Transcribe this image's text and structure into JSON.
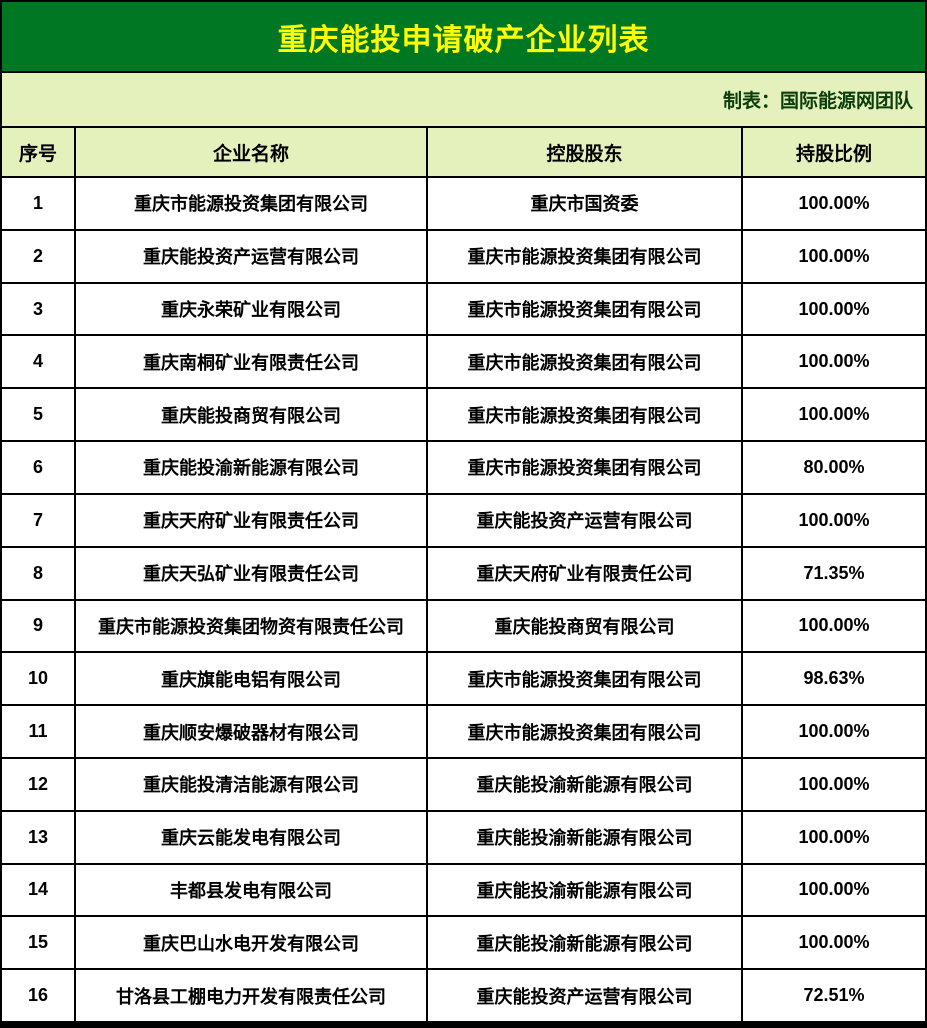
{
  "title": {
    "text": "重庆能投申请破产企业列表"
  },
  "subtitle": {
    "text": "制表：国际能源网团队"
  },
  "table": {
    "headers": [
      "序号",
      "企业名称",
      "控股股东",
      "持股比例"
    ],
    "rows": [
      {
        "seq": "1",
        "company": "重庆市能源投资集团有限公司",
        "shareholder": "重庆市国资委",
        "ratio": "100.00%"
      },
      {
        "seq": "2",
        "company": "重庆能投资产运营有限公司",
        "shareholder": "重庆市能源投资集团有限公司",
        "ratio": "100.00%"
      },
      {
        "seq": "3",
        "company": "重庆永荣矿业有限公司",
        "shareholder": "重庆市能源投资集团有限公司",
        "ratio": "100.00%"
      },
      {
        "seq": "4",
        "company": "重庆南桐矿业有限责任公司",
        "shareholder": "重庆市能源投资集团有限公司",
        "ratio": "100.00%"
      },
      {
        "seq": "5",
        "company": "重庆能投商贸有限公司",
        "shareholder": "重庆市能源投资集团有限公司",
        "ratio": "100.00%"
      },
      {
        "seq": "6",
        "company": "重庆能投渝新能源有限公司",
        "shareholder": "重庆市能源投资集团有限公司",
        "ratio": "80.00%"
      },
      {
        "seq": "7",
        "company": "重庆天府矿业有限责任公司",
        "shareholder": "重庆能投资产运营有限公司",
        "ratio": "100.00%"
      },
      {
        "seq": "8",
        "company": "重庆天弘矿业有限责任公司",
        "shareholder": "重庆天府矿业有限责任公司",
        "ratio": "71.35%"
      },
      {
        "seq": "9",
        "company": "重庆市能源投资集团物资有限责任公司",
        "shareholder": "重庆能投商贸有限公司",
        "ratio": "100.00%"
      },
      {
        "seq": "10",
        "company": "重庆旗能电铝有限公司",
        "shareholder": "重庆市能源投资集团有限公司",
        "ratio": "98.63%"
      },
      {
        "seq": "11",
        "company": "重庆顺安爆破器材有限公司",
        "shareholder": "重庆市能源投资集团有限公司",
        "ratio": "100.00%"
      },
      {
        "seq": "12",
        "company": "重庆能投清洁能源有限公司",
        "shareholder": "重庆能投渝新能源有限公司",
        "ratio": "100.00%"
      },
      {
        "seq": "13",
        "company": "重庆云能发电有限公司",
        "shareholder": "重庆能投渝新能源有限公司",
        "ratio": "100.00%"
      },
      {
        "seq": "14",
        "company": "丰都县发电有限公司",
        "shareholder": "重庆能投渝新能源有限公司",
        "ratio": "100.00%"
      },
      {
        "seq": "15",
        "company": "重庆巴山水电开发有限公司",
        "shareholder": "重庆能投渝新能源有限公司",
        "ratio": "100.00%"
      },
      {
        "seq": "16",
        "company": "甘洛县工棚电力开发有限责任公司",
        "shareholder": "重庆能投资产运营有限公司",
        "ratio": "72.51%"
      }
    ]
  },
  "colors": {
    "title_bg": "#007723",
    "title_text": "#FFFF00",
    "band_bg": "#E4F1BC",
    "subtitle_text": "#0B3D0B",
    "border": "#000000",
    "body_bg": "#FFFFFF",
    "body_text": "#000000"
  },
  "chart_data": {
    "type": "table",
    "title": "重庆能投申请破产企业列表",
    "note": "制表：国际能源网团队",
    "columns": [
      "序号",
      "企业名称",
      "控股股东",
      "持股比例"
    ],
    "rows": [
      [
        "1",
        "重庆市能源投资集团有限公司",
        "重庆市国资委",
        "100.00%"
      ],
      [
        "2",
        "重庆能投资产运营有限公司",
        "重庆市能源投资集团有限公司",
        "100.00%"
      ],
      [
        "3",
        "重庆永荣矿业有限公司",
        "重庆市能源投资集团有限公司",
        "100.00%"
      ],
      [
        "4",
        "重庆南桐矿业有限责任公司",
        "重庆市能源投资集团有限公司",
        "100.00%"
      ],
      [
        "5",
        "重庆能投商贸有限公司",
        "重庆市能源投资集团有限公司",
        "100.00%"
      ],
      [
        "6",
        "重庆能投渝新能源有限公司",
        "重庆市能源投资集团有限公司",
        "80.00%"
      ],
      [
        "7",
        "重庆天府矿业有限责任公司",
        "重庆能投资产运营有限公司",
        "100.00%"
      ],
      [
        "8",
        "重庆天弘矿业有限责任公司",
        "重庆天府矿业有限责任公司",
        "71.35%"
      ],
      [
        "9",
        "重庆市能源投资集团物资有限责任公司",
        "重庆能投商贸有限公司",
        "100.00%"
      ],
      [
        "10",
        "重庆旗能电铝有限公司",
        "重庆市能源投资集团有限公司",
        "98.63%"
      ],
      [
        "11",
        "重庆顺安爆破器材有限公司",
        "重庆市能源投资集团有限公司",
        "100.00%"
      ],
      [
        "12",
        "重庆能投清洁能源有限公司",
        "重庆能投渝新能源有限公司",
        "100.00%"
      ],
      [
        "13",
        "重庆云能发电有限公司",
        "重庆能投渝新能源有限公司",
        "100.00%"
      ],
      [
        "14",
        "丰都县发电有限公司",
        "重庆能投渝新能源有限公司",
        "100.00%"
      ],
      [
        "15",
        "重庆巴山水电开发有限公司",
        "重庆能投渝新能源有限公司",
        "100.00%"
      ],
      [
        "16",
        "甘洛县工棚电力开发有限责任公司",
        "重庆能投资产运营有限公司",
        "72.51%"
      ]
    ]
  }
}
